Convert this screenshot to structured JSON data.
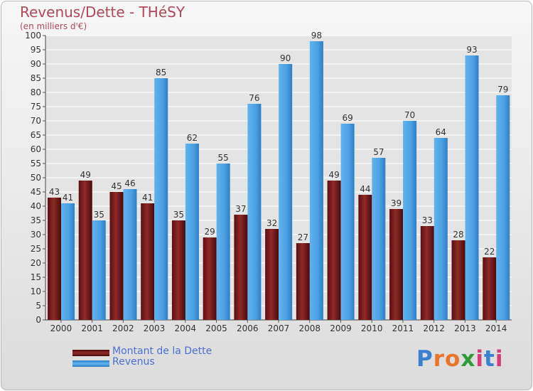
{
  "header": {
    "title": "Revenus/Dette - THéSY",
    "subtitle": "(en milliers d'€)"
  },
  "legend": [
    {
      "label": "Montant de la Dette",
      "color": "#7a1c1c"
    },
    {
      "label": "Revenus",
      "color": "#4da3e6"
    }
  ],
  "logo": {
    "letters": [
      "P",
      "r",
      "o",
      "x",
      "i",
      "t",
      "i"
    ]
  },
  "chart_data": {
    "type": "bar",
    "title": "Revenus/Dette - THéSY",
    "ylabel": "(en milliers d'€)",
    "xlabel": "",
    "ylim": [
      0,
      100
    ],
    "ytick_step": 5,
    "grid": true,
    "categories": [
      "2000",
      "2001",
      "2002",
      "2003",
      "2004",
      "2005",
      "2006",
      "2007",
      "2008",
      "2009",
      "2010",
      "2011",
      "2012",
      "2013",
      "2014"
    ],
    "series": [
      {
        "name": "Montant de la Dette",
        "values": [
          43,
          49,
          45,
          41,
          35,
          29,
          37,
          32,
          27,
          49,
          44,
          39,
          33,
          28,
          22
        ]
      },
      {
        "name": "Revenus",
        "values": [
          41,
          35,
          46,
          85,
          62,
          55,
          76,
          90,
          98,
          69,
          57,
          70,
          64,
          93,
          79
        ]
      }
    ],
    "colors": {
      "dette": "#7a1c1c",
      "revenus": "#4da3e6",
      "text": "#333333",
      "grid": "#ffffff"
    }
  }
}
